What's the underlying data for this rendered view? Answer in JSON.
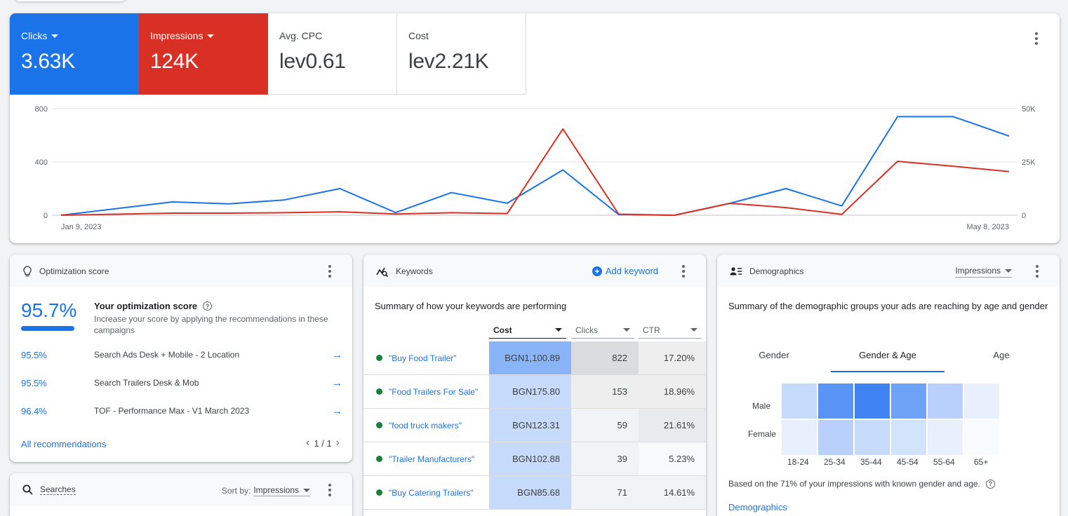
{
  "overview": {
    "metrics": [
      {
        "label": "Clicks",
        "value": "3.63K",
        "color": "#1a73e8",
        "selected": true
      },
      {
        "label": "Impressions",
        "value": "124K",
        "color": "#d93025",
        "selected": true
      },
      {
        "label": "Avg. CPC",
        "value": "lev0.61"
      },
      {
        "label": "Cost",
        "value": "lev2.21K"
      }
    ],
    "left_ticks": [
      "800",
      "400",
      "0"
    ],
    "right_ticks": [
      "50K",
      "25K",
      "0"
    ],
    "date_start": "Jan 9, 2023",
    "date_end": "May 8, 2023"
  },
  "chart_data": {
    "type": "line",
    "x": [
      "Jan 9, 2023",
      "",
      "",
      "",
      "",
      "",
      "",
      "",
      "",
      "",
      "",
      "",
      "",
      "",
      "",
      "",
      "",
      "May 8, 2023"
    ],
    "ylim_left": [
      0,
      800
    ],
    "ylim_right": [
      0,
      50000
    ],
    "series": [
      {
        "axis": "left",
        "color": "#1a73e8",
        "values": [
          0,
          50,
          100,
          85,
          115,
          200,
          20,
          170,
          90,
          340,
          5,
          0,
          90,
          200,
          70,
          740,
          740,
          595
        ]
      },
      {
        "axis": "right",
        "color": "#d93025",
        "values": [
          0,
          500,
          1000,
          1000,
          1200,
          1600,
          600,
          1200,
          800,
          40500,
          500,
          0,
          5600,
          3600,
          400,
          25300,
          23000,
          20500
        ]
      }
    ]
  },
  "optimization": {
    "title": "Optimization score",
    "score": "95.7%",
    "score_fraction": 0.957,
    "heading": "Your optimization score",
    "subtext": "Increase your score by applying the recommendations in these campaigns",
    "rows": [
      {
        "pct": "95.5%",
        "name": "Search Ads Desk + Mobile - 2 Location"
      },
      {
        "pct": "95.5%",
        "name": "Search Trailers Desk & Mob"
      },
      {
        "pct": "96.4%",
        "name": "TOF - Performance Max - V1 March 2023"
      }
    ],
    "all_link": "All recommendations",
    "pager": "1 / 1"
  },
  "searches": {
    "title": "Searches",
    "sort_label": "Sort by:",
    "sort_value": "Impressions"
  },
  "keywords": {
    "title": "Keywords",
    "add_label": "Add keyword",
    "summary": "Summary of how your keywords are performing",
    "columns": [
      "Cost",
      "Clicks",
      "CTR"
    ],
    "rows": [
      {
        "keyword": "\"Buy Food Trailer\"",
        "cost": "BGN1,100.89",
        "clicks": "822",
        "ctr": "17.20%",
        "cost_bg": "#8ab4f8",
        "clicks_bg": "#dadce0",
        "ctr_bg": "#eeeeee"
      },
      {
        "keyword": "\"Food Trailers For Sale\"",
        "cost": "BGN175.80",
        "clicks": "153",
        "ctr": "18.96%",
        "cost_bg": "#c6dafc",
        "clicks_bg": "#eeeeee",
        "ctr_bg": "#eeeeee"
      },
      {
        "keyword": "\"food truck makers\"",
        "cost": "BGN123.31",
        "clicks": "59",
        "ctr": "21.61%",
        "cost_bg": "#c6dafc",
        "clicks_bg": "#f1f3f4",
        "ctr_bg": "#e8eaed"
      },
      {
        "keyword": "\"Trailer Manufacturers\"",
        "cost": "BGN102.88",
        "clicks": "39",
        "ctr": "5.23%",
        "cost_bg": "#c6dafc",
        "clicks_bg": "#f1f3f4",
        "ctr_bg": "#f8f9fa"
      },
      {
        "keyword": "\"Buy Catering Trailers\"",
        "cost": "BGN85.68",
        "clicks": "71",
        "ctr": "14.61%",
        "cost_bg": "#c6dafc",
        "clicks_bg": "#f1f3f4",
        "ctr_bg": "#f1f3f4"
      }
    ]
  },
  "demographics": {
    "title": "Demographics",
    "metric": "Impressions",
    "summary": "Summary of the demographic groups your ads are reaching by age and gender",
    "tabs": [
      "Gender",
      "Gender & Age",
      "Age"
    ],
    "active_tab": 1,
    "genders": [
      "Male",
      "Female"
    ],
    "ages": [
      "18-24",
      "25-34",
      "35-44",
      "45-54",
      "55-64",
      "65+"
    ],
    "heatmap": [
      [
        "#c6dafc",
        "#5a95f5",
        "#3f84f2",
        "#6ea2f6",
        "#b8d0fb",
        "#e8f0fe"
      ],
      [
        "#e8f0fe",
        "#b8d0fb",
        "#c6dafc",
        "#d2e3fc",
        "#e8f0fe",
        "#f8fbff"
      ]
    ],
    "note": "Based on the 71% of your impressions with known gender and age.",
    "link": "Demographics"
  }
}
